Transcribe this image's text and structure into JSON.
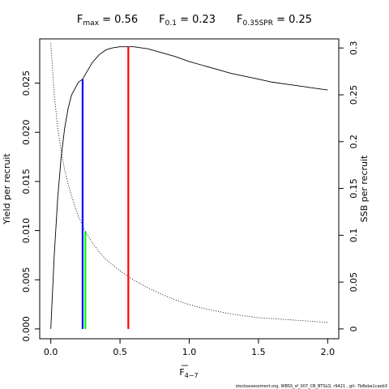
{
  "chart_data": {
    "type": "line",
    "title_parts": [
      {
        "main": "F",
        "sub": "max",
        "value": "= 0.56"
      },
      {
        "main": "F",
        "sub": "0.1",
        "value": "= 0.23"
      },
      {
        "main": "F",
        "sub": "0.35SPR",
        "value": "= 0.25"
      }
    ],
    "xlabel": {
      "main": "F",
      "sub": "4−7"
    },
    "ylabel_left": "Yield per recruit",
    "ylabel_right": "SSB per recruit",
    "xlim": [
      -0.08,
      2.08
    ],
    "ylim_left": [
      -0.001,
      0.0295
    ],
    "ylim_right": [
      -0.0105,
      0.3097
    ],
    "x_ticks": [
      0.0,
      0.5,
      1.0,
      1.5,
      2.0
    ],
    "x_tick_labels": [
      "0.0",
      "0.5",
      "1.0",
      "1.5",
      "2.0"
    ],
    "y_left_ticks": [
      0.0,
      0.005,
      0.01,
      0.015,
      0.02,
      0.025
    ],
    "y_left_tick_labels": [
      "0.000",
      "0.005",
      "0.010",
      "0.015",
      "0.020",
      "0.025"
    ],
    "y_right_ticks": [
      0,
      0.05,
      0.1,
      0.15,
      0.2,
      0.25,
      0.3
    ],
    "y_right_tick_labels": [
      "0",
      "0.05",
      "0.1",
      "0.15",
      "0.2",
      "0.25",
      "0.3"
    ],
    "series": [
      {
        "axis": "left",
        "style": "solid",
        "color": "#000000",
        "x": [
          0.0,
          0.025,
          0.05,
          0.075,
          0.1,
          0.125,
          0.15,
          0.2,
          0.23,
          0.25,
          0.3,
          0.35,
          0.4,
          0.45,
          0.5,
          0.56,
          0.6,
          0.7,
          0.8,
          0.9,
          1.0,
          1.1,
          1.2,
          1.3,
          1.4,
          1.5,
          1.6,
          1.7,
          1.8,
          1.9,
          2.0
        ],
        "y": [
          0.0,
          0.0075,
          0.0133,
          0.0175,
          0.0204,
          0.0224,
          0.0238,
          0.0251,
          0.0254,
          0.0259,
          0.0271,
          0.0279,
          0.0284,
          0.0286,
          0.0287,
          0.0287,
          0.0287,
          0.0285,
          0.0281,
          0.0277,
          0.0272,
          0.0268,
          0.0264,
          0.026,
          0.0257,
          0.0254,
          0.0251,
          0.0249,
          0.0247,
          0.0245,
          0.0243
        ]
      },
      {
        "axis": "right",
        "style": "dotted",
        "color": "#000000",
        "x": [
          0.0,
          0.025,
          0.05,
          0.075,
          0.1,
          0.125,
          0.15,
          0.2,
          0.25,
          0.3,
          0.35,
          0.4,
          0.5,
          0.56,
          0.6,
          0.7,
          0.8,
          0.9,
          1.0,
          1.1,
          1.2,
          1.3,
          1.4,
          1.5,
          1.6,
          1.7,
          1.8,
          1.9,
          2.0
        ],
        "y": [
          0.305,
          0.25,
          0.215,
          0.19,
          0.17,
          0.155,
          0.142,
          0.12,
          0.104,
          0.092,
          0.082,
          0.074,
          0.062,
          0.056,
          0.052,
          0.044,
          0.037,
          0.031,
          0.026,
          0.022,
          0.019,
          0.016,
          0.014,
          0.012,
          0.011,
          0.01,
          0.009,
          0.008,
          0.007
        ]
      }
    ],
    "reference_lines": [
      {
        "name": "F0.1",
        "axis": "left",
        "x": 0.23,
        "y": 0.0254,
        "color": "#0000ff"
      },
      {
        "name": "F0.35SPR",
        "axis": "right",
        "x": 0.25,
        "y": 0.104,
        "color": "#00ff00"
      },
      {
        "name": "Fmax",
        "axis": "left",
        "x": 0.56,
        "y": 0.0287,
        "color": "#ff0000"
      }
    ],
    "grid": false,
    "legend": "none"
  },
  "footer_note": "stockassessment.org, WBSS_sf_007_CB_BTSLO, r9421 , git: 7b8eba1caeb3"
}
